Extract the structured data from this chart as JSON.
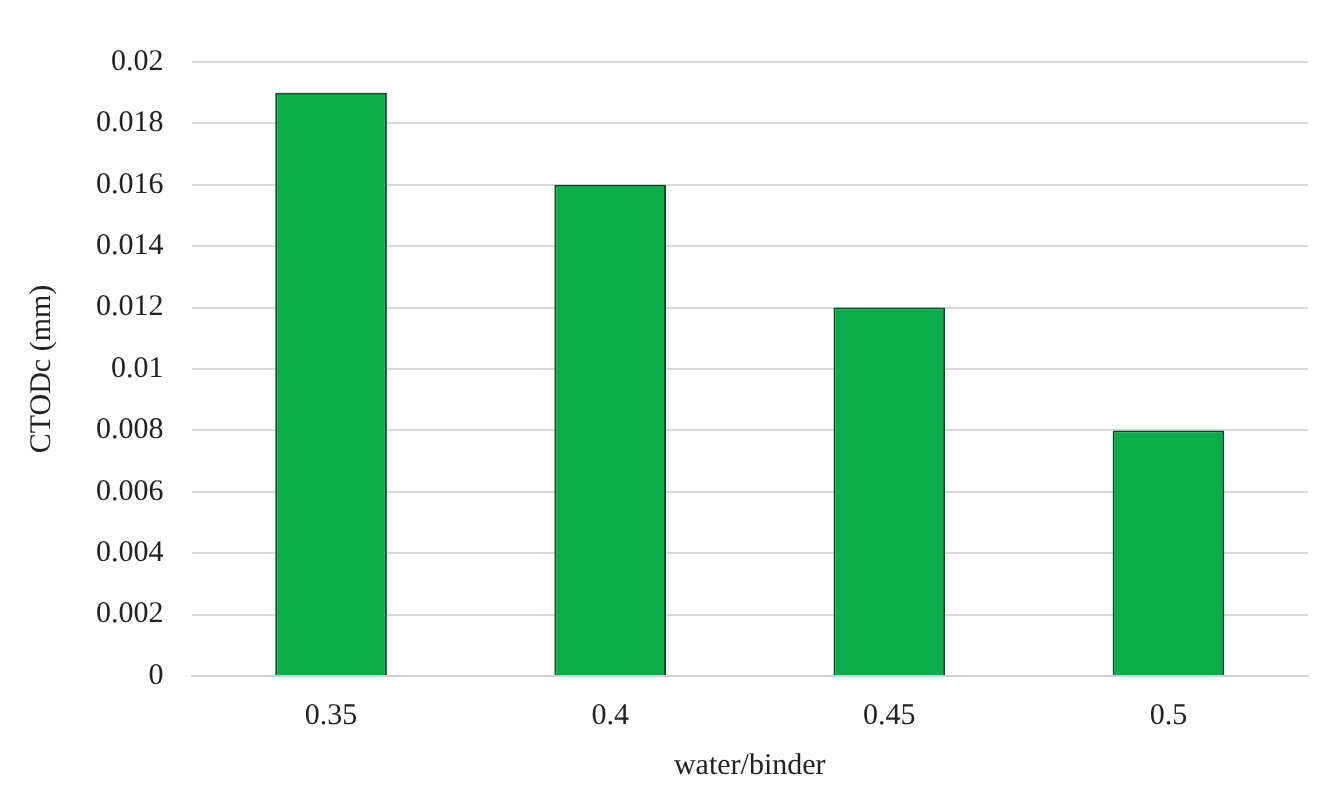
{
  "chart_data": {
    "type": "bar",
    "xlabel": "water/binder",
    "ylabel": "CTODc (mm)",
    "categories": [
      "0.35",
      "0.4",
      "0.45",
      "0.5"
    ],
    "values": [
      0.019,
      0.016,
      0.012,
      0.008
    ],
    "color": "#0aad4a",
    "ylim": [
      0,
      0.02
    ],
    "yticks": [
      0,
      0.002,
      0.004,
      0.006,
      0.008,
      0.01,
      0.012,
      0.014,
      0.016,
      0.018,
      0.02
    ],
    "grid": "y"
  }
}
